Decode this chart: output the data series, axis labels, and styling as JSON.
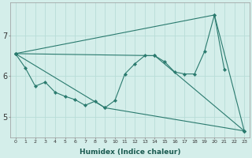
{
  "xlabel": "Humidex (Indice chaleur)",
  "background_color": "#d4eeea",
  "grid_color": "#b8ddd8",
  "line_color": "#2a7a6e",
  "xlim": [
    -0.5,
    23.5
  ],
  "ylim": [
    4.5,
    7.8
  ],
  "yticks": [
    5,
    6,
    7
  ],
  "xticks": [
    0,
    1,
    2,
    3,
    4,
    5,
    6,
    7,
    8,
    9,
    10,
    11,
    12,
    13,
    14,
    15,
    16,
    17,
    18,
    19,
    20,
    21,
    22,
    23
  ],
  "lines": [
    {
      "x": [
        0,
        1,
        2,
        3,
        4,
        5,
        6,
        7,
        8,
        9,
        10,
        11,
        12,
        13,
        14,
        15,
        16,
        17,
        18,
        19,
        20,
        21
      ],
      "y": [
        6.55,
        6.2,
        5.75,
        5.85,
        5.6,
        5.5,
        5.42,
        5.28,
        5.38,
        5.22,
        5.4,
        6.05,
        6.3,
        6.5,
        6.5,
        6.35,
        6.1,
        6.05,
        6.05,
        6.6,
        7.5,
        6.15
      ]
    },
    {
      "x": [
        0,
        20,
        23
      ],
      "y": [
        6.55,
        7.5,
        4.65
      ]
    },
    {
      "comment": "mid triangle: 0->14->23",
      "x": [
        0,
        14,
        23
      ],
      "y": [
        6.55,
        6.5,
        4.65
      ]
    },
    {
      "comment": "lower line: 0->9->23",
      "x": [
        0,
        9,
        23
      ],
      "y": [
        6.55,
        5.22,
        4.65
      ]
    }
  ]
}
